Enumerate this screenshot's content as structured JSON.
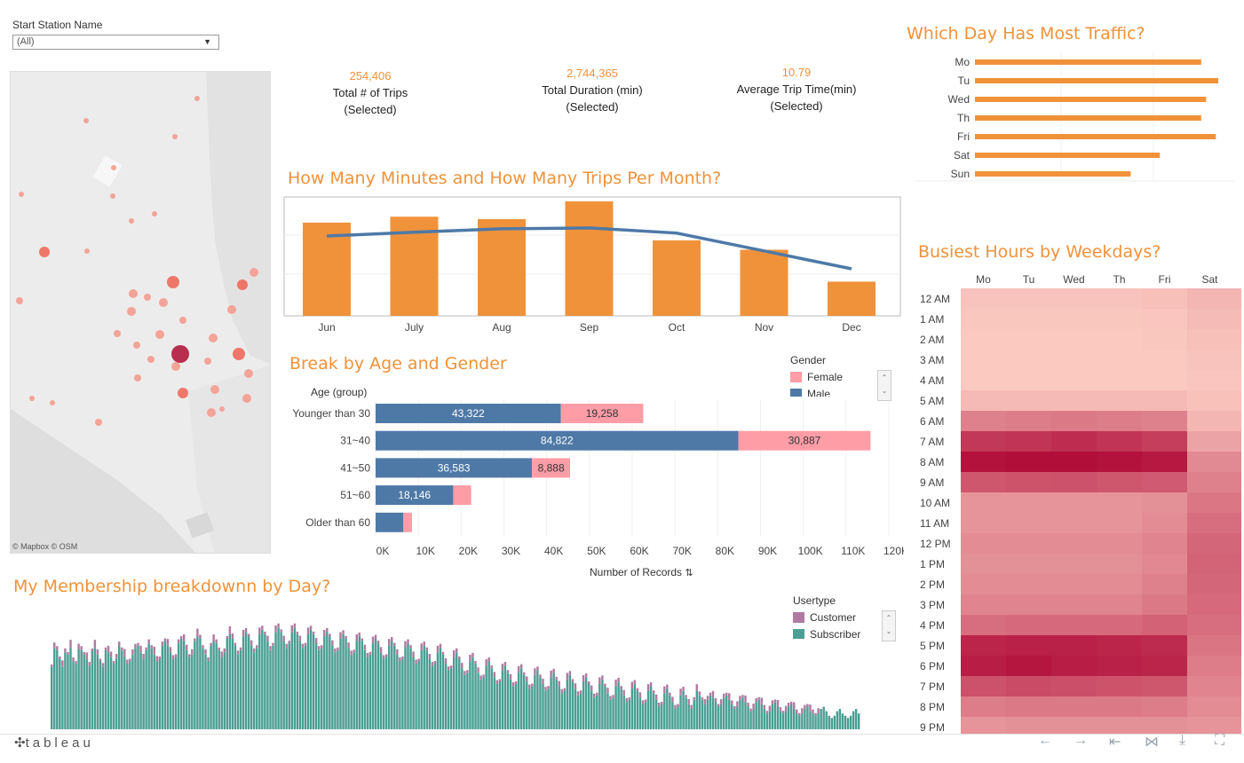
{
  "filter": {
    "label": "Start Station Name",
    "value": "(All)"
  },
  "map": {
    "attribution": "© Mapbox  © OSM"
  },
  "kpis": [
    {
      "value": "254,406",
      "line1": "Total # of Trips",
      "line2": "(Selected)"
    },
    {
      "value": "2,744,365",
      "line1": "Total Duration (min)",
      "line2": "(Selected)"
    },
    {
      "value": "10.79",
      "line1": "Average Trip Time(min)",
      "line2": "(Selected)"
    }
  ],
  "titles": {
    "monthly": "How Many Minutes and How Many Trips Per Month?",
    "age_gender": "Break by Age and Gender",
    "membership": "My Membership breakdownn by Day?",
    "traffic": "Which Day Has Most Traffic?",
    "hours": "Busiest Hours by Weekdays?"
  },
  "colors": {
    "orange": "#f0923a",
    "male": "#4e79a7",
    "female": "#ff9da7",
    "customer": "#b07aa1",
    "subscriber": "#4a9e93"
  },
  "chart_data": [
    {
      "type": "bar",
      "name": "monthly",
      "categories": [
        "Jun",
        "July",
        "Aug",
        "Sep",
        "Oct",
        "Nov",
        "Dec"
      ],
      "series": [
        {
          "values": [
            0.79,
            0.84,
            0.82,
            0.97,
            0.64,
            0.56,
            0.29
          ]
        },
        {
          "values": [
            0.77,
            0.86,
            0.94,
            0.96,
            0.84,
            0.42,
            0.0
          ]
        }
      ],
      "xlabel": "",
      "ylabel": ""
    },
    {
      "type": "bar",
      "name": "age_gender",
      "axis_title": "Age (group)",
      "categories": [
        "Younger than 30",
        "31~40",
        "41~50",
        "51~60",
        "Older than 60"
      ],
      "series": [
        {
          "name": "Male",
          "values": [
            43322,
            84822,
            36583,
            18146,
            6500
          ],
          "labels": [
            "43,322",
            "84,822",
            "36,583",
            "18,146",
            ""
          ]
        },
        {
          "name": "Female",
          "values": [
            19258,
            30887,
            8888,
            4200,
            2000
          ],
          "labels": [
            "19,258",
            "30,887",
            "8,888",
            "",
            ""
          ]
        }
      ],
      "legend_title": "Gender",
      "x_ticks": [
        "0K",
        "10K",
        "20K",
        "30K",
        "40K",
        "50K",
        "60K",
        "70K",
        "80K",
        "90K",
        "100K",
        "110K",
        "120K"
      ],
      "xlim": [
        0,
        120000
      ],
      "xlabel": "Number of Records",
      "ylabel": ""
    },
    {
      "type": "bar",
      "name": "traffic",
      "categories": [
        "Mo",
        "Tu",
        "Wed",
        "Th",
        "Fri",
        "Sat",
        "Sun"
      ],
      "values": [
        0.93,
        1.0,
        0.95,
        0.93,
        0.99,
        0.76,
        0.64
      ],
      "xlabel": "",
      "ylabel": ""
    },
    {
      "type": "heatmap",
      "name": "hours",
      "columns": [
        "Mo",
        "Tu",
        "Wed",
        "Th",
        "Fri",
        "Sat"
      ],
      "rows": [
        "12 AM",
        "1 AM",
        "2 AM",
        "3 AM",
        "4 AM",
        "5 AM",
        "6 AM",
        "7 AM",
        "8 AM",
        "9 AM",
        "10 AM",
        "11 AM",
        "12 PM",
        "1 PM",
        "2 PM",
        "3 PM",
        "4 PM",
        "5 PM",
        "6 PM",
        "7 PM",
        "8 PM",
        "9 PM"
      ],
      "values": [
        [
          0.05,
          0.05,
          0.05,
          0.05,
          0.07,
          0.12
        ],
        [
          0.03,
          0.03,
          0.03,
          0.03,
          0.04,
          0.09
        ],
        [
          0.02,
          0.02,
          0.02,
          0.02,
          0.03,
          0.07
        ],
        [
          0.02,
          0.02,
          0.02,
          0.02,
          0.02,
          0.05
        ],
        [
          0.02,
          0.02,
          0.02,
          0.02,
          0.02,
          0.04
        ],
        [
          0.1,
          0.1,
          0.1,
          0.1,
          0.1,
          0.06
        ],
        [
          0.4,
          0.42,
          0.44,
          0.42,
          0.4,
          0.12
        ],
        [
          0.78,
          0.8,
          0.84,
          0.8,
          0.75,
          0.22
        ],
        [
          0.98,
          1.0,
          1.0,
          0.98,
          0.95,
          0.35
        ],
        [
          0.62,
          0.64,
          0.65,
          0.62,
          0.6,
          0.4
        ],
        [
          0.3,
          0.3,
          0.3,
          0.3,
          0.32,
          0.45
        ],
        [
          0.3,
          0.3,
          0.3,
          0.3,
          0.34,
          0.5
        ],
        [
          0.34,
          0.34,
          0.34,
          0.34,
          0.38,
          0.54
        ],
        [
          0.32,
          0.32,
          0.32,
          0.32,
          0.36,
          0.55
        ],
        [
          0.34,
          0.34,
          0.34,
          0.34,
          0.4,
          0.54
        ],
        [
          0.38,
          0.38,
          0.38,
          0.38,
          0.44,
          0.52
        ],
        [
          0.5,
          0.52,
          0.52,
          0.52,
          0.56,
          0.5
        ],
        [
          0.88,
          0.9,
          0.9,
          0.88,
          0.85,
          0.46
        ],
        [
          0.92,
          0.96,
          0.92,
          0.9,
          0.88,
          0.42
        ],
        [
          0.65,
          0.68,
          0.66,
          0.64,
          0.62,
          0.38
        ],
        [
          0.42,
          0.44,
          0.44,
          0.44,
          0.42,
          0.34
        ],
        [
          0.3,
          0.32,
          0.32,
          0.32,
          0.32,
          0.3
        ]
      ]
    },
    {
      "type": "bar",
      "name": "membership",
      "legend_title": "Usertype",
      "series": [
        {
          "name": "Customer"
        },
        {
          "name": "Subscriber"
        }
      ],
      "note": "daily stacked bars (Jun–Dec), values estimated",
      "subscriber": [
        0.55,
        0.72,
        0.7,
        0.62,
        0.55,
        0.68,
        0.66,
        0.72,
        0.6,
        0.58,
        0.71,
        0.7,
        0.66,
        0.62,
        0.56,
        0.69,
        0.72,
        0.66,
        0.6,
        0.55,
        0.7,
        0.68,
        0.64,
        0.58,
        0.62,
        0.74,
        0.7,
        0.64,
        0.58,
        0.6,
        0.66,
        0.72,
        0.74,
        0.68,
        0.62,
        0.7,
        0.76,
        0.72,
        0.66,
        0.6,
        0.62,
        0.74,
        0.78,
        0.74,
        0.68,
        0.62,
        0.64,
        0.76,
        0.8,
        0.78,
        0.7,
        0.64,
        0.66,
        0.78,
        0.82,
        0.8,
        0.72,
        0.66,
        0.6,
        0.74,
        0.78,
        0.76,
        0.7,
        0.64,
        0.68,
        0.8,
        0.84,
        0.8,
        0.74,
        0.66,
        0.7,
        0.82,
        0.86,
        0.82,
        0.74,
        0.68,
        0.72,
        0.84,
        0.88,
        0.84,
        0.78,
        0.7,
        0.74,
        0.86,
        0.9,
        0.86,
        0.78,
        0.72,
        0.76,
        0.86,
        0.9,
        0.84,
        0.78,
        0.72,
        0.74,
        0.84,
        0.88,
        0.84,
        0.76,
        0.7,
        0.72,
        0.82,
        0.86,
        0.82,
        0.74,
        0.68,
        0.7,
        0.8,
        0.84,
        0.8,
        0.72,
        0.66,
        0.68,
        0.78,
        0.82,
        0.78,
        0.7,
        0.64,
        0.66,
        0.76,
        0.8,
        0.76,
        0.68,
        0.62,
        0.64,
        0.74,
        0.78,
        0.74,
        0.66,
        0.6,
        0.62,
        0.72,
        0.76,
        0.72,
        0.64,
        0.58,
        0.6,
        0.7,
        0.74,
        0.7,
        0.62,
        0.56,
        0.58,
        0.68,
        0.72,
        0.66,
        0.58,
        0.52,
        0.54,
        0.64,
        0.68,
        0.62,
        0.54,
        0.48,
        0.5,
        0.6,
        0.64,
        0.58,
        0.5,
        0.44,
        0.46,
        0.56,
        0.6,
        0.54,
        0.46,
        0.4,
        0.42,
        0.52,
        0.56,
        0.5,
        0.44,
        0.38,
        0.4,
        0.5,
        0.54,
        0.48,
        0.42,
        0.36,
        0.38,
        0.48,
        0.52,
        0.46,
        0.4,
        0.34,
        0.36,
        0.46,
        0.5,
        0.44,
        0.38,
        0.32,
        0.34,
        0.44,
        0.48,
        0.42,
        0.36,
        0.3,
        0.32,
        0.42,
        0.46,
        0.4,
        0.34,
        0.28,
        0.3,
        0.4,
        0.44,
        0.38,
        0.32,
        0.26,
        0.28,
        0.38,
        0.42,
        0.36,
        0.3,
        0.24,
        0.26,
        0.36,
        0.4,
        0.34,
        0.28,
        0.22,
        0.24,
        0.34,
        0.38,
        0.32,
        0.26,
        0.2,
        0.22,
        0.32,
        0.36,
        0.3,
        0.24,
        0.18,
        0.2,
        0.3,
        0.34,
        0.28,
        0.22,
        0.18,
        0.26,
        0.34,
        0.3,
        0.26,
        0.22,
        0.26,
        0.3,
        0.28,
        0.24,
        0.2,
        0.22,
        0.28,
        0.3,
        0.26,
        0.22,
        0.18,
        0.2,
        0.26,
        0.28,
        0.24,
        0.2,
        0.16,
        0.18,
        0.24,
        0.26,
        0.22,
        0.18,
        0.14,
        0.16,
        0.22,
        0.24,
        0.2,
        0.16,
        0.14,
        0.16,
        0.2,
        0.22,
        0.18,
        0.14,
        0.12,
        0.14,
        0.18,
        0.2,
        0.16,
        0.14,
        0.12,
        0.14,
        0.18,
        0.2,
        0.16,
        0.12,
        0.1,
        0.12,
        0.16,
        0.18,
        0.14,
        0.12,
        0.1,
        0.12,
        0.16,
        0.18,
        0.14
      ],
      "customer": [
        0.02,
        0.04,
        0.03,
        0.02,
        0.05,
        0.03,
        0.02,
        0.06,
        0.03,
        0.02,
        0.04,
        0.03,
        0.02,
        0.05,
        0.03,
        0.02,
        0.06,
        0.04,
        0.02,
        0.03,
        0.02,
        0.05,
        0.04,
        0.02,
        0.04,
        0.03,
        0.02,
        0.06,
        0.03,
        0.02,
        0.04,
        0.03,
        0.02,
        0.05,
        0.04,
        0.02,
        0.03,
        0.02,
        0.06,
        0.04,
        0.02,
        0.03,
        0.02,
        0.05,
        0.04,
        0.03,
        0.02,
        0.03,
        0.02,
        0.05,
        0.04,
        0.02,
        0.04,
        0.02,
        0.06,
        0.03,
        0.02,
        0.04,
        0.03,
        0.02,
        0.05,
        0.03,
        0.02,
        0.04,
        0.03,
        0.02,
        0.06,
        0.04,
        0.02,
        0.03,
        0.02,
        0.05,
        0.03,
        0.02,
        0.04,
        0.03,
        0.02,
        0.05,
        0.03,
        0.02,
        0.04,
        0.03,
        0.02,
        0.05,
        0.03,
        0.02,
        0.04,
        0.03,
        0.02,
        0.05,
        0.03,
        0.02,
        0.04,
        0.03,
        0.02,
        0.05,
        0.03,
        0.02,
        0.04,
        0.03,
        0.02,
        0.05,
        0.03,
        0.02,
        0.04,
        0.03,
        0.02,
        0.05,
        0.03,
        0.02,
        0.04,
        0.03,
        0.02,
        0.05,
        0.03,
        0.02,
        0.04,
        0.03,
        0.02,
        0.05,
        0.03,
        0.02,
        0.04,
        0.03,
        0.02,
        0.05,
        0.03,
        0.02,
        0.04,
        0.03,
        0.02,
        0.05,
        0.03,
        0.02,
        0.04,
        0.03,
        0.02,
        0.05,
        0.03,
        0.02,
        0.04,
        0.03,
        0.02,
        0.05,
        0.03,
        0.02,
        0.04,
        0.03,
        0.02,
        0.05,
        0.03,
        0.02,
        0.04,
        0.03,
        0.02,
        0.05,
        0.03,
        0.02,
        0.04,
        0.03,
        0.02,
        0.05,
        0.03,
        0.02,
        0.04,
        0.03,
        0.02,
        0.05,
        0.03,
        0.02,
        0.04,
        0.03,
        0.02,
        0.05,
        0.03,
        0.02,
        0.04,
        0.03,
        0.02,
        0.05,
        0.03,
        0.02,
        0.04,
        0.03,
        0.02,
        0.05,
        0.03,
        0.02,
        0.04,
        0.03,
        0.02,
        0.05,
        0.03,
        0.02,
        0.04,
        0.03,
        0.02,
        0.05,
        0.03,
        0.02,
        0.04,
        0.03,
        0.02,
        0.05,
        0.03,
        0.02,
        0.04,
        0.03,
        0.02,
        0.05,
        0.03,
        0.02,
        0.04,
        0.03,
        0.02,
        0.05,
        0.03,
        0.02,
        0.04,
        0.03,
        0.02,
        0.05,
        0.03,
        0.02,
        0.04,
        0.03,
        0.02,
        0.05,
        0.03,
        0.02,
        0.04,
        0.03,
        0.02,
        0.05,
        0.03,
        0.02,
        0.04,
        0.03,
        0.02,
        0.05,
        0.03,
        0.02,
        0.04,
        0.03,
        0.02,
        0.05,
        0.03,
        0.02,
        0.04,
        0.03,
        0.02,
        0.05,
        0.03,
        0.02,
        0.04,
        0.03,
        0.02,
        0.05,
        0.03,
        0.02,
        0.04,
        0.03,
        0.02,
        0.05,
        0.03,
        0.02,
        0.04,
        0.03,
        0.02,
        0.05,
        0.03,
        0.02,
        0.04,
        0.03,
        0.02,
        0.05,
        0.03,
        0.02,
        0.04,
        0.03,
        0.02,
        0.05,
        0.03,
        0.02,
        0.04
      ]
    }
  ],
  "legend": {
    "gender_title": "Gender",
    "female": "Female",
    "male": "Male",
    "usertype_title": "Usertype",
    "customer": "Customer",
    "subscriber": "Subscriber"
  },
  "footer": {
    "logo": "tableau",
    "logo_icon": "tableau-plus-icon",
    "icons": [
      "undo-icon",
      "redo-icon",
      "revert-icon",
      "share-icon",
      "download-icon",
      "fullscreen-icon"
    ]
  }
}
